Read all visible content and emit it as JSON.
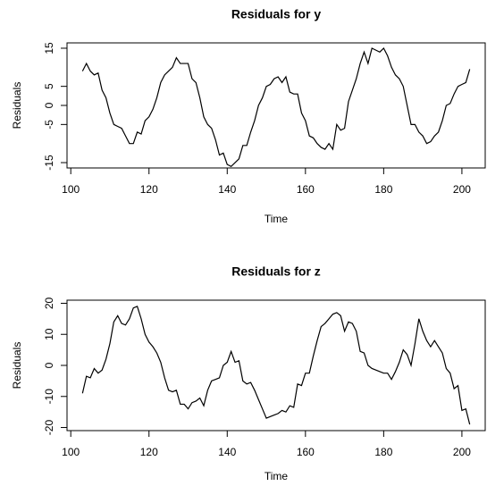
{
  "chart_data": [
    {
      "type": "line",
      "title": "Residuals for y",
      "xlabel": "Time",
      "ylabel": "Residuals",
      "color": "#000000",
      "x": [
        103,
        104,
        105,
        106,
        107,
        108,
        109,
        110,
        111,
        112,
        113,
        114,
        115,
        116,
        117,
        118,
        119,
        120,
        121,
        122,
        123,
        124,
        125,
        126,
        127,
        128,
        129,
        130,
        131,
        132,
        133,
        134,
        135,
        136,
        137,
        138,
        139,
        140,
        141,
        142,
        143,
        144,
        145,
        146,
        147,
        148,
        149,
        150,
        151,
        152,
        153,
        154,
        155,
        156,
        157,
        158,
        159,
        160,
        161,
        162,
        163,
        164,
        165,
        166,
        167,
        168,
        169,
        170,
        171,
        172,
        173,
        174,
        175,
        176,
        177,
        178,
        179,
        180,
        181,
        182,
        183,
        184,
        185,
        186,
        187,
        188,
        189,
        190,
        191,
        192,
        193,
        194,
        195,
        196,
        197,
        198,
        199,
        200,
        201,
        202
      ],
      "values": [
        9,
        11,
        9,
        8,
        8.5,
        4,
        2,
        -2,
        -5,
        -5.5,
        -6,
        -8,
        -10,
        -10,
        -7,
        -7.5,
        -4,
        -3,
        -1,
        2,
        6,
        8,
        9,
        10,
        12.5,
        11,
        11,
        11,
        7,
        6,
        2,
        -3,
        -5,
        -6,
        -9,
        -13,
        -12.5,
        -15.5,
        -16,
        -15,
        -14,
        -10.5,
        -10.5,
        -7,
        -4,
        0,
        2,
        5,
        5.5,
        7,
        7.5,
        6,
        7.5,
        3.5,
        3,
        3,
        -2,
        -4,
        -8,
        -8.5,
        -10,
        -11,
        -11.5,
        -10,
        -11.5,
        -5,
        -6.5,
        -6,
        1,
        4,
        7,
        11,
        14,
        11,
        15,
        14.5,
        14,
        15,
        13,
        10,
        8,
        7,
        5,
        0,
        -5,
        -5,
        -7,
        -8,
        -10,
        -9.5,
        -8,
        -7,
        -4,
        0,
        0.5,
        3,
        5,
        5.5,
        6,
        9.5
      ],
      "xlim": [
        99.04,
        205.96
      ],
      "ylim": [
        -16.4,
        16.4
      ],
      "xticks": [
        100,
        120,
        140,
        160,
        180,
        200
      ],
      "yticks": [
        -15,
        -5,
        0,
        5,
        15
      ]
    },
    {
      "type": "line",
      "title": "Residuals for z",
      "xlabel": "Time",
      "ylabel": "Residuals",
      "color": "#000000",
      "x": [
        103,
        104,
        105,
        106,
        107,
        108,
        109,
        110,
        111,
        112,
        113,
        114,
        115,
        116,
        117,
        118,
        119,
        120,
        121,
        122,
        123,
        124,
        125,
        126,
        127,
        128,
        129,
        130,
        131,
        132,
        133,
        134,
        135,
        136,
        137,
        138,
        139,
        140,
        141,
        142,
        143,
        144,
        145,
        146,
        147,
        148,
        149,
        150,
        151,
        152,
        153,
        154,
        155,
        156,
        157,
        158,
        159,
        160,
        161,
        162,
        163,
        164,
        165,
        166,
        167,
        168,
        169,
        170,
        171,
        172,
        173,
        174,
        175,
        176,
        177,
        178,
        179,
        180,
        181,
        182,
        183,
        184,
        185,
        186,
        187,
        188,
        189,
        190,
        191,
        192,
        193,
        194,
        195,
        196,
        197,
        198,
        199,
        200,
        201,
        202
      ],
      "values": [
        -9,
        -3.5,
        -4,
        -1,
        -2.5,
        -1.5,
        2,
        7,
        14,
        16,
        13.5,
        13,
        15,
        18.5,
        19,
        15,
        10,
        7.5,
        6,
        4,
        1,
        -4,
        -8,
        -8.5,
        -8,
        -12.5,
        -12.5,
        -14,
        -12,
        -11.5,
        -10.5,
        -13,
        -8,
        -5,
        -4.5,
        -4,
        0,
        1,
        4.5,
        1,
        1.5,
        -5,
        -6,
        -5.5,
        -8,
        -11,
        -14,
        -17,
        -16.5,
        -16,
        -15.5,
        -14.5,
        -15,
        -13,
        -13.5,
        -6,
        -6.5,
        -2.5,
        -2.5,
        3,
        8,
        12.5,
        13.5,
        15,
        16.5,
        17,
        16,
        11,
        14,
        13.5,
        11,
        4.5,
        4,
        0,
        -1,
        -1.5,
        -2,
        -2.5,
        -2.5,
        -4.5,
        -2,
        1,
        5,
        3.5,
        0,
        7,
        15,
        11,
        8,
        6,
        8,
        6,
        4,
        -1,
        -2.5,
        -7.5,
        -6.5,
        -14.5,
        -14,
        -19
      ],
      "xlim": [
        99.04,
        205.96
      ],
      "ylim": [
        -21,
        21
      ],
      "xticks": [
        100,
        120,
        140,
        160,
        180,
        200
      ],
      "yticks": [
        -20,
        -10,
        0,
        10,
        20
      ]
    }
  ]
}
